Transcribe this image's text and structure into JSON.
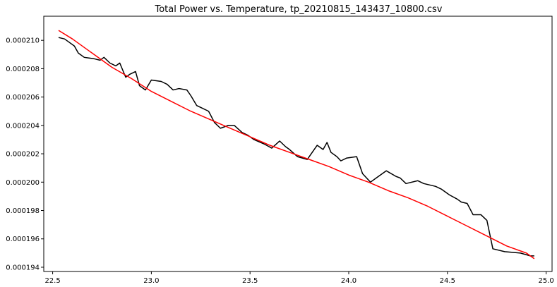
{
  "chart_data": {
    "type": "line",
    "title": "Total Power vs. Temperature, tp_20210815_143437_10800.csv",
    "xlabel": "",
    "ylabel": "",
    "xlim": [
      22.455,
      25.03
    ],
    "ylim": [
      0.0001937,
      0.0002117
    ],
    "grid": false,
    "x_ticks": [
      {
        "value": 22.5,
        "label": "22.5"
      },
      {
        "value": 23.0,
        "label": "23.0"
      },
      {
        "value": 23.5,
        "label": "23.5"
      },
      {
        "value": 24.0,
        "label": "24.0"
      },
      {
        "value": 24.5,
        "label": "24.5"
      },
      {
        "value": 25.0,
        "label": "25.0"
      }
    ],
    "y_ticks": [
      {
        "value": 0.000194,
        "label": "0.000194"
      },
      {
        "value": 0.000196,
        "label": "0.000196"
      },
      {
        "value": 0.000198,
        "label": "0.000198"
      },
      {
        "value": 0.0002,
        "label": "0.000200"
      },
      {
        "value": 0.000202,
        "label": "0.000202"
      },
      {
        "value": 0.000204,
        "label": "0.000204"
      },
      {
        "value": 0.000206,
        "label": "0.000206"
      },
      {
        "value": 0.000208,
        "label": "0.000208"
      },
      {
        "value": 0.00021,
        "label": "0.000210"
      }
    ],
    "series": [
      {
        "color": "#000000",
        "x": [
          22.53,
          22.56,
          22.58,
          22.61,
          22.63,
          22.66,
          22.71,
          22.74,
          22.76,
          22.79,
          22.82,
          22.84,
          22.87,
          22.89,
          22.92,
          22.94,
          22.97,
          23.0,
          23.05,
          23.08,
          23.11,
          23.14,
          23.18,
          23.2,
          23.23,
          23.26,
          23.29,
          23.32,
          23.35,
          23.39,
          23.42,
          23.46,
          23.49,
          23.52,
          23.57,
          23.61,
          23.65,
          23.68,
          23.7,
          23.74,
          23.79,
          23.81,
          23.84,
          23.87,
          23.89,
          23.91,
          23.94,
          23.96,
          23.99,
          24.04,
          24.07,
          24.11,
          24.14,
          24.19,
          24.24,
          24.26,
          24.29,
          24.35,
          24.38,
          24.41,
          24.44,
          24.47,
          24.51,
          24.55,
          24.57,
          24.6,
          24.63,
          24.67,
          24.7,
          24.73,
          24.79,
          24.87,
          24.92,
          24.94
        ],
        "y": [
          0.0002102,
          0.0002101,
          0.0002099,
          0.0002096,
          0.0002091,
          0.0002088,
          0.0002087,
          0.0002086,
          0.0002088,
          0.0002084,
          0.0002082,
          0.0002084,
          0.0002074,
          0.0002076,
          0.0002078,
          0.0002068,
          0.0002065,
          0.0002072,
          0.0002071,
          0.0002069,
          0.0002065,
          0.0002066,
          0.0002065,
          0.0002061,
          0.0002054,
          0.0002052,
          0.000205,
          0.0002042,
          0.0002038,
          0.000204,
          0.000204,
          0.0002035,
          0.0002033,
          0.000203,
          0.0002027,
          0.0002024,
          0.0002029,
          0.0002025,
          0.0002023,
          0.0002018,
          0.0002016,
          0.000202,
          0.0002026,
          0.0002023,
          0.0002028,
          0.0002021,
          0.0002018,
          0.0002015,
          0.0002017,
          0.0002018,
          0.0002006,
          0.0002,
          0.0002003,
          0.0002008,
          0.0002004,
          0.0002003,
          0.0001999,
          0.0002001,
          0.0001999,
          0.0001998,
          0.0001997,
          0.0001995,
          0.0001991,
          0.0001988,
          0.0001986,
          0.0001985,
          0.0001977,
          0.0001977,
          0.0001973,
          0.0001953,
          0.0001951,
          0.000195,
          0.0001948,
          0.0001948
        ]
      },
      {
        "color": "#ff0000",
        "x": [
          22.53,
          22.6,
          22.7,
          22.8,
          22.9,
          23.0,
          23.1,
          23.2,
          23.3,
          23.4,
          23.5,
          23.6,
          23.7,
          23.8,
          23.9,
          24.0,
          24.1,
          24.2,
          24.3,
          24.4,
          24.5,
          24.6,
          24.7,
          24.8,
          24.9,
          24.94
        ],
        "y": [
          0.0002107,
          0.0002101,
          0.0002091,
          0.0002081,
          0.0002073,
          0.0002064,
          0.0002057,
          0.000205,
          0.0002044,
          0.0002038,
          0.0002032,
          0.0002026,
          0.0002021,
          0.0002016,
          0.0002011,
          0.0002005,
          0.0002,
          0.0001994,
          0.0001989,
          0.0001983,
          0.0001976,
          0.0001969,
          0.0001962,
          0.0001955,
          0.000195,
          0.0001946
        ]
      }
    ]
  }
}
